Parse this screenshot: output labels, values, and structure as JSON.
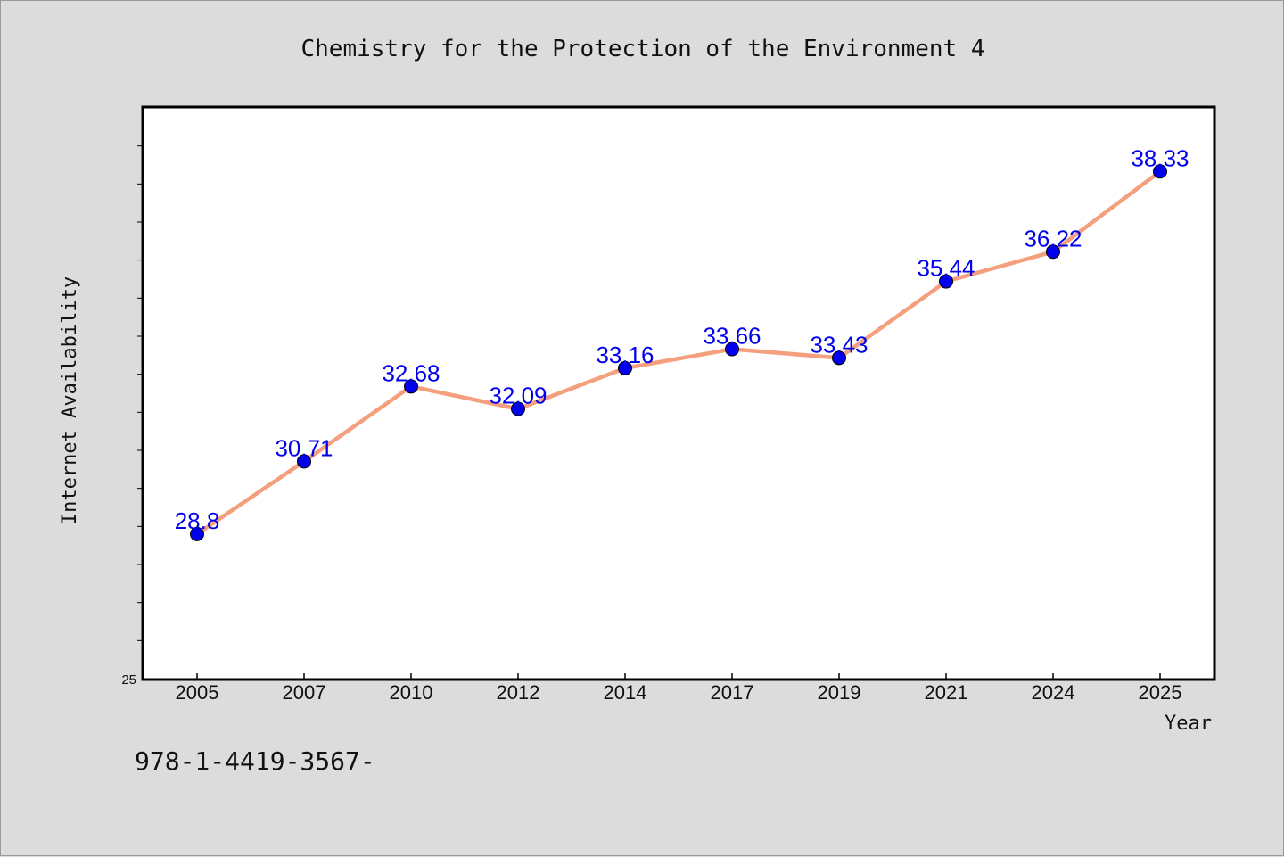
{
  "chart_data": {
    "type": "line",
    "title": "Chemistry for the Protection of the Environment 4",
    "xlabel": "Year",
    "ylabel": "Internet Availability",
    "categories": [
      "2005",
      "2007",
      "2010",
      "2012",
      "2014",
      "2017",
      "2019",
      "2021",
      "2024",
      "2025"
    ],
    "series": [
      {
        "values": [
          28.8,
          30.71,
          32.68,
          32.09,
          33.16,
          33.66,
          33.43,
          35.44,
          36.22,
          38.33
        ],
        "labels": [
          "28.8",
          "30.71",
          "32.68",
          "32.09",
          "33.16",
          "33.66",
          "33.43",
          "35.44",
          "36.22",
          "38.33"
        ]
      }
    ],
    "ylim": [
      25,
      40
    ],
    "y_tick_label": "25",
    "grid": false,
    "legend": "none",
    "colors": {
      "line": "#f4a07e",
      "marker": "#0000ee",
      "data_label": "#0000ee",
      "plot_background": "#ffffff",
      "page_background": "#dcdcdc"
    }
  },
  "footnote": "978-1-4419-3567-"
}
